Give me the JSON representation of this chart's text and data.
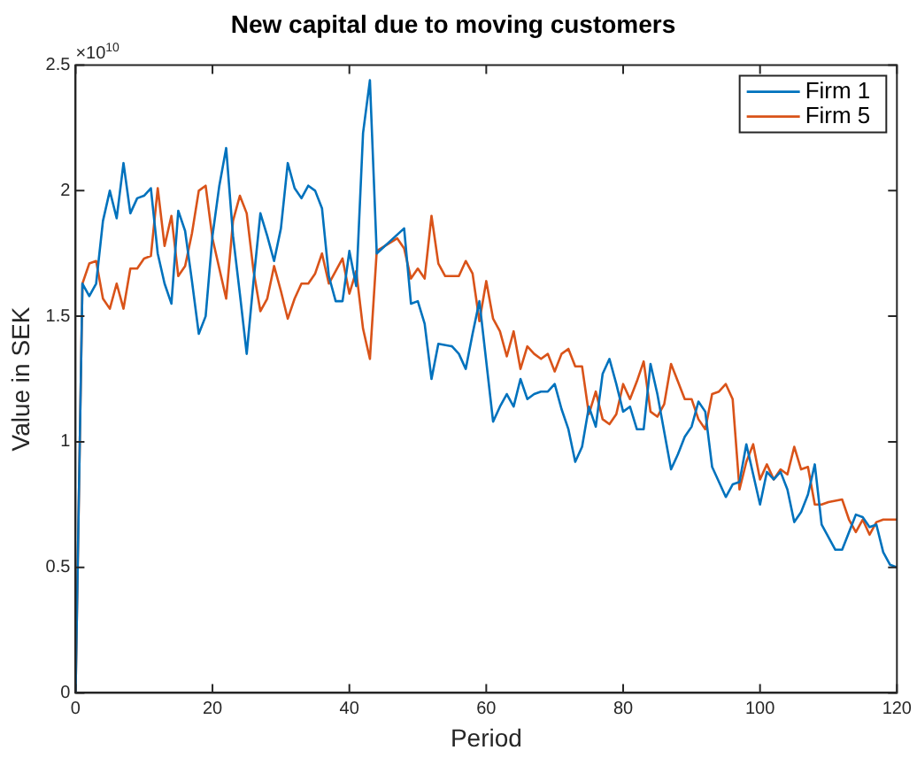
{
  "chart_data": {
    "type": "line",
    "title": "New capital due to moving customers",
    "xlabel": "Period",
    "ylabel": "Value in SEK",
    "annotations": [
      "×10$^{10}$"
    ],
    "xlim": [
      0,
      120
    ],
    "xticks": [
      0,
      20,
      40,
      60,
      80,
      100,
      120
    ],
    "ylim": [
      0,
      2.5
    ],
    "yticks": [
      0,
      0.5,
      1,
      1.5,
      2,
      2.5
    ],
    "grid": false,
    "legend": "top right",
    "marker": "none",
    "line_style": "solid",
    "series": [
      {
        "name": "Firm 1",
        "color": "#0072bd",
        "x": [
          0,
          1,
          2,
          3,
          4,
          5,
          6,
          7,
          8,
          9,
          10,
          11,
          12,
          13,
          14,
          15,
          16,
          17,
          18,
          19,
          20,
          21,
          22,
          23,
          24,
          25,
          26,
          27,
          28,
          29,
          30,
          31,
          32,
          33,
          34,
          35,
          36,
          37,
          38,
          39,
          40,
          41,
          42,
          43,
          44,
          48,
          49,
          50,
          51,
          52,
          53,
          55,
          56,
          57,
          58,
          59,
          61,
          62,
          63,
          64,
          65,
          66,
          67,
          68,
          69,
          70,
          71,
          72,
          73,
          74,
          75,
          76,
          77,
          78,
          79,
          80,
          81,
          82,
          83,
          84,
          85,
          87,
          88,
          89,
          90,
          91,
          92,
          93,
          95,
          96,
          97,
          98,
          99,
          100,
          101,
          102,
          103,
          104,
          105,
          106,
          107,
          108,
          109,
          110,
          111,
          112,
          113,
          114,
          115,
          116,
          117,
          118,
          119,
          120
        ],
        "values": [
          0,
          1.63,
          1.58,
          1.63,
          1.88,
          2.0,
          1.89,
          2.11,
          1.91,
          1.97,
          1.98,
          2.01,
          1.75,
          1.63,
          1.55,
          1.92,
          1.84,
          1.64,
          1.43,
          1.5,
          1.82,
          2.02,
          2.17,
          1.82,
          1.59,
          1.35,
          1.64,
          1.91,
          1.82,
          1.72,
          1.85,
          2.11,
          2.01,
          1.97,
          2.02,
          2.0,
          1.93,
          1.66,
          1.56,
          1.56,
          1.76,
          1.62,
          2.23,
          2.44,
          1.75,
          1.85,
          1.55,
          1.56,
          1.47,
          1.25,
          1.39,
          1.38,
          1.35,
          1.29,
          1.43,
          1.56,
          1.08,
          1.14,
          1.19,
          1.14,
          1.25,
          1.17,
          1.19,
          1.2,
          1.2,
          1.23,
          1.13,
          1.05,
          0.92,
          0.98,
          1.14,
          1.06,
          1.27,
          1.33,
          1.23,
          1.12,
          1.14,
          1.05,
          1.05,
          1.31,
          1.19,
          0.89,
          0.95,
          1.02,
          1.06,
          1.16,
          1.12,
          0.9,
          0.78,
          0.83,
          0.84,
          0.99,
          0.87,
          0.75,
          0.88,
          0.85,
          0.88,
          0.81,
          0.68,
          0.72,
          0.79,
          0.91,
          0.67,
          0.62,
          0.57,
          0.57,
          0.64,
          0.71,
          0.7,
          0.66,
          0.67,
          0.56,
          0.51,
          0.5
        ]
      },
      {
        "name": "Firm 5",
        "color": "#d95319",
        "x": [
          0,
          1,
          2,
          3,
          4,
          5,
          6,
          7,
          8,
          9,
          10,
          11,
          12,
          13,
          14,
          15,
          16,
          17,
          18,
          19,
          20,
          21,
          22,
          23,
          24,
          25,
          26,
          27,
          28,
          29,
          30,
          31,
          32,
          33,
          34,
          35,
          36,
          37,
          38,
          39,
          40,
          41,
          42,
          43,
          44,
          47,
          48,
          49,
          50,
          51,
          52,
          53,
          54,
          56,
          57,
          58,
          59,
          60,
          61,
          62,
          63,
          64,
          65,
          66,
          67,
          68,
          69,
          70,
          71,
          72,
          73,
          74,
          75,
          76,
          77,
          78,
          79,
          80,
          81,
          82,
          83,
          84,
          85,
          86,
          87,
          88,
          89,
          90,
          91,
          92,
          93,
          94,
          95,
          96,
          97,
          98,
          99,
          100,
          101,
          102,
          103,
          104,
          105,
          106,
          107,
          108,
          109,
          110,
          112,
          113,
          114,
          115,
          116,
          117,
          118,
          120
        ],
        "values": [
          0,
          1.63,
          1.71,
          1.72,
          1.57,
          1.53,
          1.63,
          1.53,
          1.69,
          1.69,
          1.73,
          1.74,
          2.01,
          1.78,
          1.9,
          1.66,
          1.7,
          1.83,
          2.0,
          2.02,
          1.81,
          1.69,
          1.57,
          1.88,
          1.98,
          1.91,
          1.68,
          1.52,
          1.57,
          1.7,
          1.6,
          1.49,
          1.57,
          1.63,
          1.63,
          1.67,
          1.75,
          1.63,
          1.68,
          1.73,
          1.59,
          1.68,
          1.45,
          1.33,
          1.76,
          1.81,
          1.77,
          1.65,
          1.69,
          1.65,
          1.9,
          1.71,
          1.66,
          1.66,
          1.72,
          1.67,
          1.48,
          1.64,
          1.49,
          1.44,
          1.34,
          1.44,
          1.29,
          1.38,
          1.35,
          1.33,
          1.35,
          1.28,
          1.35,
          1.37,
          1.3,
          1.3,
          1.11,
          1.2,
          1.09,
          1.07,
          1.11,
          1.23,
          1.17,
          1.24,
          1.32,
          1.12,
          1.1,
          1.15,
          1.31,
          1.24,
          1.17,
          1.17,
          1.09,
          1.05,
          1.19,
          1.2,
          1.23,
          1.17,
          0.81,
          0.92,
          0.99,
          0.85,
          0.91,
          0.85,
          0.89,
          0.87,
          0.98,
          0.89,
          0.9,
          0.75,
          0.75,
          0.76,
          0.77,
          0.69,
          0.64,
          0.69,
          0.63,
          0.68,
          0.69,
          0.69
        ]
      }
    ]
  }
}
